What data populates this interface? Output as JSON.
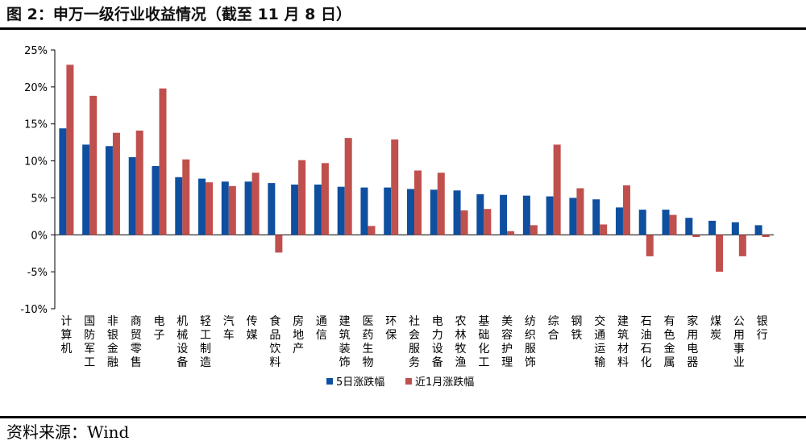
{
  "page": {
    "title": "图 2：申万一级行业收益情况（截至 11 月 8 日）",
    "source": "资料来源：Wind"
  },
  "chart_data": {
    "type": "bar",
    "categories": [
      "计算机",
      "国防军工",
      "非银金融",
      "商贸零售",
      "电子",
      "机械设备",
      "轻工制造",
      "汽车",
      "传媒",
      "食品饮料",
      "房地产",
      "通信",
      "建筑装饰",
      "医药生物",
      "环保",
      "社会服务",
      "电力设备",
      "农林牧渔",
      "基础化工",
      "美容护理",
      "纺织服饰",
      "综合",
      "钢铁",
      "交通运输",
      "建筑材料",
      "石油石化",
      "有色金属",
      "家用电器",
      "煤炭",
      "公用事业",
      "银行"
    ],
    "series": [
      {
        "name": "5日涨跌幅",
        "color": "#0f4fa0",
        "values": [
          14.4,
          12.2,
          12.0,
          10.5,
          9.3,
          7.8,
          7.6,
          7.2,
          7.2,
          7.0,
          6.8,
          6.8,
          6.5,
          6.4,
          6.4,
          6.2,
          6.1,
          6.0,
          5.5,
          5.4,
          5.3,
          5.2,
          5.0,
          4.8,
          3.7,
          3.4,
          3.4,
          2.3,
          1.9,
          1.7,
          1.3
        ]
      },
      {
        "name": "近1月涨跌幅",
        "color": "#c0504d",
        "values": [
          23.0,
          18.8,
          13.8,
          14.1,
          19.8,
          10.2,
          7.1,
          6.6,
          8.4,
          -2.4,
          10.1,
          9.7,
          13.1,
          1.2,
          12.9,
          8.7,
          8.4,
          3.3,
          3.5,
          0.5,
          1.3,
          12.2,
          6.3,
          1.4,
          6.7,
          -2.9,
          2.7,
          -0.3,
          -5.0,
          -2.9,
          -0.3
        ]
      }
    ],
    "y_ticks": [
      "25%",
      "20%",
      "15%",
      "10%",
      "5%",
      "0%",
      "-5%",
      "-10%"
    ],
    "ylim": [
      -10,
      25
    ],
    "legend_position": "bottom-center"
  }
}
